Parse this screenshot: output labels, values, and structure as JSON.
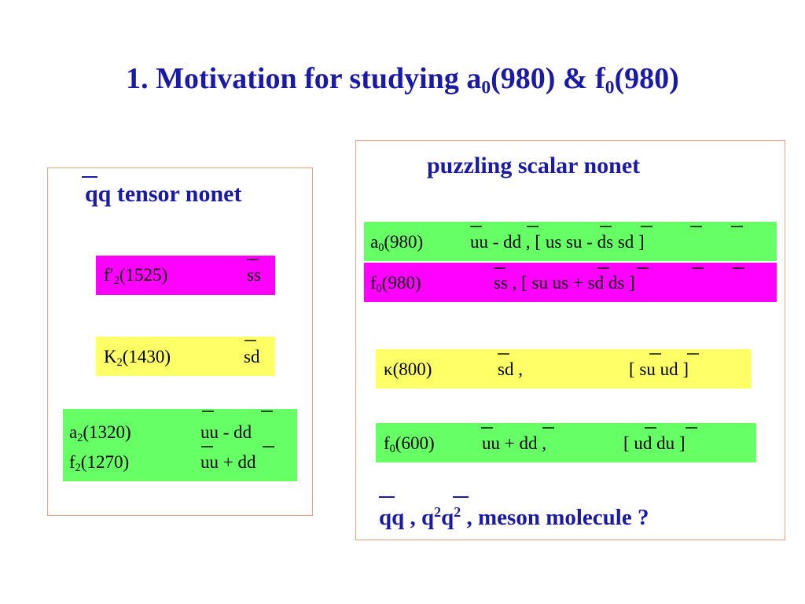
{
  "title": {
    "pre": "1. Motivation for studying a",
    "sub1": "0",
    "mid": "(980) & f",
    "sub2": "0",
    "post": "(980)"
  },
  "tensor": {
    "heading": "qq tensor nonet",
    "f2p": {
      "name": "f′",
      "sub": "2",
      "mass": "(1525)",
      "content": "ss"
    },
    "k2": {
      "name": "K",
      "sub": "2",
      "mass": "(1430)",
      "content": "sd"
    },
    "a2": {
      "name": "a",
      "sub": "2",
      "mass": "(1320)",
      "content": "uu -  dd"
    },
    "f2": {
      "name": "f",
      "sub": "2",
      "mass": "(1270)",
      "content": "uu +  dd"
    }
  },
  "scalar": {
    "heading": "puzzling scalar nonet",
    "a0": {
      "name": "a",
      "sub": "0",
      "mass": "(980)",
      "content": "uu -  dd ,  [  us  su -  ds  sd ]"
    },
    "f0_980": {
      "name": "f",
      "sub": "0",
      "mass": "(980)",
      "content": "ss      ,  [  su  us +  sd  ds ]"
    },
    "kappa": {
      "name": "κ",
      "mass": "(800)",
      "content": "sd      ,",
      "bracket": "[  su  ud ]"
    },
    "f0_600": {
      "name": "f",
      "sub": "0",
      "mass": "(600)",
      "content": "uu +  dd ,",
      "bracket": "[  ud  du ]"
    },
    "footer": {
      "part1": "qq ,   q",
      "sup1": "2",
      "part2": "q",
      "sup2": "2",
      "part3": " ,  meson molecule ?"
    }
  }
}
